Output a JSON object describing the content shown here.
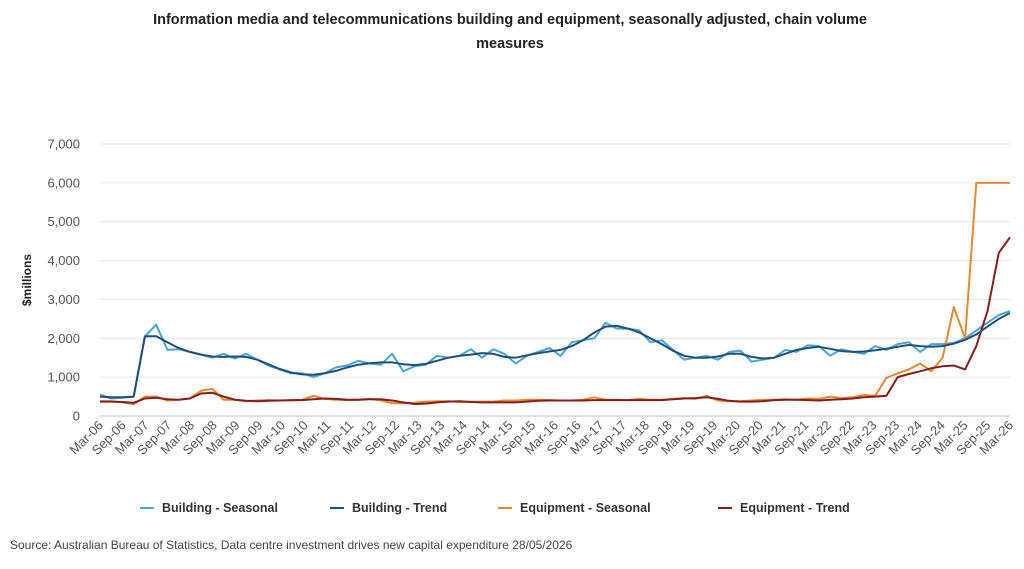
{
  "chart_data": {
    "type": "line",
    "title": "Information media and telecommunications building and equipment, seasonally adjusted, chain volume measures",
    "ylabel": "$millions",
    "xlabel": "",
    "ylim": [
      0,
      7000
    ],
    "yticks": [
      "0",
      "1,000",
      "2,000",
      "3,000",
      "4,000",
      "5,000",
      "6,000",
      "7,000"
    ],
    "grid": "horizontal",
    "legend_position": "bottom",
    "x_tick_labels": [
      "Mar-06",
      "Sep-06",
      "Mar-07",
      "Sep-07",
      "Mar-08",
      "Sep-08",
      "Mar-09",
      "Sep-09",
      "Mar-10",
      "Sep-10",
      "Mar-11",
      "Sep-11",
      "Mar-12",
      "Sep-12",
      "Mar-13",
      "Sep-13",
      "Mar-14",
      "Sep-14",
      "Mar-15",
      "Sep-15",
      "Mar-16",
      "Sep-16",
      "Mar-17",
      "Sep-17",
      "Mar-18",
      "Sep-18",
      "Mar-19",
      "Sep-19",
      "Mar-20",
      "Sep-20",
      "Mar-21",
      "Sep-21",
      "Mar-22",
      "Sep-22",
      "Mar-23",
      "Sep-23",
      "Mar-24",
      "Sep-24",
      "Mar-25",
      "Sep-25",
      "Mar-26"
    ],
    "x_start": "Mar-06",
    "x_end": "Mar-26",
    "series": [
      {
        "name": "Building - Seasonal",
        "color": "#4ba3d6",
        "values": [
          550,
          450,
          470,
          500,
          2050,
          2350,
          1700,
          1720,
          1650,
          1580,
          1500,
          1600,
          1480,
          1600,
          1450,
          1300,
          1200,
          1100,
          1100,
          1000,
          1100,
          1250,
          1300,
          1420,
          1350,
          1320,
          1600,
          1150,
          1280,
          1320,
          1550,
          1500,
          1550,
          1720,
          1500,
          1720,
          1600,
          1350,
          1550,
          1650,
          1750,
          1550,
          1900,
          1950,
          2000,
          2400,
          2250,
          2250,
          2200,
          1900,
          1950,
          1700,
          1450,
          1500,
          1550,
          1450,
          1650,
          1680,
          1400,
          1450,
          1500,
          1700,
          1650,
          1820,
          1800,
          1550,
          1720,
          1650,
          1600,
          1800,
          1700,
          1850,
          1900,
          1650,
          1850,
          1850,
          1880,
          2000,
          2200,
          2400,
          2600,
          2700
        ]
      },
      {
        "name": "Building - Trend",
        "color": "#1c4f7c",
        "values": [
          500,
          480,
          480,
          500,
          2050,
          2050,
          1900,
          1750,
          1650,
          1580,
          1530,
          1520,
          1530,
          1520,
          1450,
          1330,
          1210,
          1120,
          1070,
          1060,
          1100,
          1160,
          1250,
          1320,
          1360,
          1380,
          1380,
          1330,
          1310,
          1340,
          1420,
          1500,
          1550,
          1580,
          1620,
          1600,
          1520,
          1500,
          1560,
          1620,
          1660,
          1700,
          1800,
          1950,
          2150,
          2300,
          2320,
          2250,
          2150,
          2000,
          1850,
          1680,
          1550,
          1500,
          1500,
          1530,
          1600,
          1600,
          1520,
          1480,
          1500,
          1600,
          1700,
          1750,
          1780,
          1730,
          1670,
          1650,
          1660,
          1690,
          1730,
          1780,
          1830,
          1800,
          1780,
          1800,
          1860,
          1960,
          2100,
          2300,
          2500,
          2650
        ]
      },
      {
        "name": "Equipment - Seasonal",
        "color": "#e48a2e",
        "values": [
          380,
          380,
          350,
          300,
          500,
          500,
          400,
          420,
          450,
          650,
          700,
          420,
          420,
          380,
          400,
          410,
          400,
          400,
          420,
          520,
          440,
          420,
          410,
          420,
          440,
          400,
          330,
          330,
          340,
          370,
          380,
          380,
          360,
          370,
          370,
          370,
          400,
          400,
          420,
          420,
          410,
          400,
          400,
          420,
          480,
          420,
          420,
          410,
          440,
          420,
          420,
          440,
          460,
          440,
          520,
          400,
          380,
          380,
          400,
          420,
          420,
          430,
          420,
          450,
          440,
          500,
          460,
          480,
          540,
          520,
          980,
          1100,
          1200,
          1350,
          1150,
          1500,
          2800,
          2000,
          6000,
          6000,
          6000,
          6000
        ]
      },
      {
        "name": "Equipment - Trend",
        "color": "#8b1a1a",
        "values": [
          370,
          370,
          360,
          340,
          450,
          470,
          430,
          420,
          450,
          580,
          600,
          500,
          420,
          390,
          380,
          390,
          400,
          410,
          410,
          430,
          450,
          440,
          420,
          420,
          430,
          430,
          400,
          350,
          310,
          320,
          350,
          370,
          380,
          360,
          350,
          350,
          350,
          350,
          370,
          390,
          400,
          400,
          400,
          400,
          410,
          410,
          410,
          410,
          410,
          410,
          410,
          430,
          450,
          460,
          480,
          440,
          390,
          370,
          370,
          380,
          410,
          420,
          420,
          410,
          400,
          420,
          430,
          450,
          480,
          500,
          520,
          1000,
          1080,
          1150,
          1230,
          1280,
          1300,
          1200,
          1800,
          2700,
          4200,
          4600
        ]
      }
    ]
  },
  "legend": [
    {
      "label": "Building - Seasonal",
      "color": "#4ba3d6"
    },
    {
      "label": "Building - Trend",
      "color": "#1c4f7c"
    },
    {
      "label": "Equipment - Seasonal",
      "color": "#e48a2e"
    },
    {
      "label": "Equipment - Trend",
      "color": "#8b1a1a"
    }
  ],
  "source": "Source: Australian Bureau of Statistics, Data centre investment drives new capital expenditure 28/05/2026"
}
